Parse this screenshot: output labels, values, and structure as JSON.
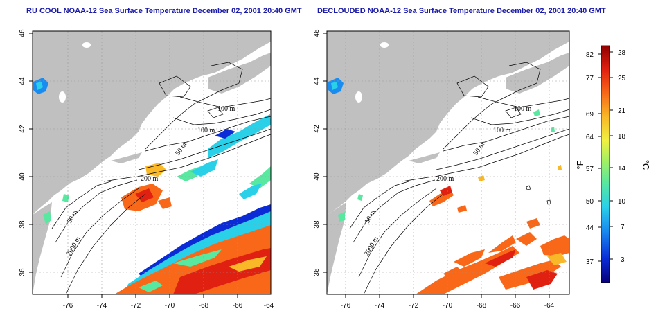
{
  "panels": {
    "left": {
      "title": "RU COOL NOAA-12 Sea Surface Temperature December 02, 2001 20:40 GMT",
      "lat_labels": [
        "46",
        "44",
        "42",
        "40",
        "38",
        "36"
      ],
      "lon_labels": [
        "-76",
        "-74",
        "-72",
        "-70",
        "-68",
        "-66",
        "-64"
      ],
      "contour_labels": [
        "100 m",
        "100 m",
        "50 m",
        "200 m",
        "50 m",
        "2000 m"
      ]
    },
    "right": {
      "title": "DECLOUDED NOAA-12 Sea Surface Temperature December 02, 2001 20:40 GMT",
      "lat_labels": [
        "46",
        "44",
        "42",
        "40",
        "38",
        "36"
      ],
      "lon_labels": [
        "-76",
        "-74",
        "-72",
        "-70",
        "-68",
        "-66",
        "-64"
      ],
      "contour_labels": [
        "100 m",
        "100 m",
        "50 m",
        "200 m",
        "50 m",
        "2000 m"
      ]
    }
  },
  "colorbar": {
    "fahrenheit_labels": [
      "82",
      "77",
      "69",
      "64",
      "57",
      "50",
      "44",
      "37"
    ],
    "celsius_labels": [
      "28",
      "25",
      "21",
      "18",
      "14",
      "10",
      "7",
      "3"
    ],
    "fahrenheit_unit": "°F",
    "celsius_unit": "°C",
    "colors": [
      "#08007a",
      "#0a2bd6",
      "#1a8cf0",
      "#2ad0e8",
      "#58e8a0",
      "#a8f060",
      "#f0f040",
      "#f8b828",
      "#f86818",
      "#e02010",
      "#900000"
    ]
  },
  "map_extent": {
    "lon": [
      -77,
      -63
    ],
    "lat": [
      35,
      46
    ]
  },
  "colors": {
    "land": "#c0c0c0",
    "ocean": "#ffffff",
    "title": "#1a1aa8",
    "grid": "#9a9a9a"
  }
}
